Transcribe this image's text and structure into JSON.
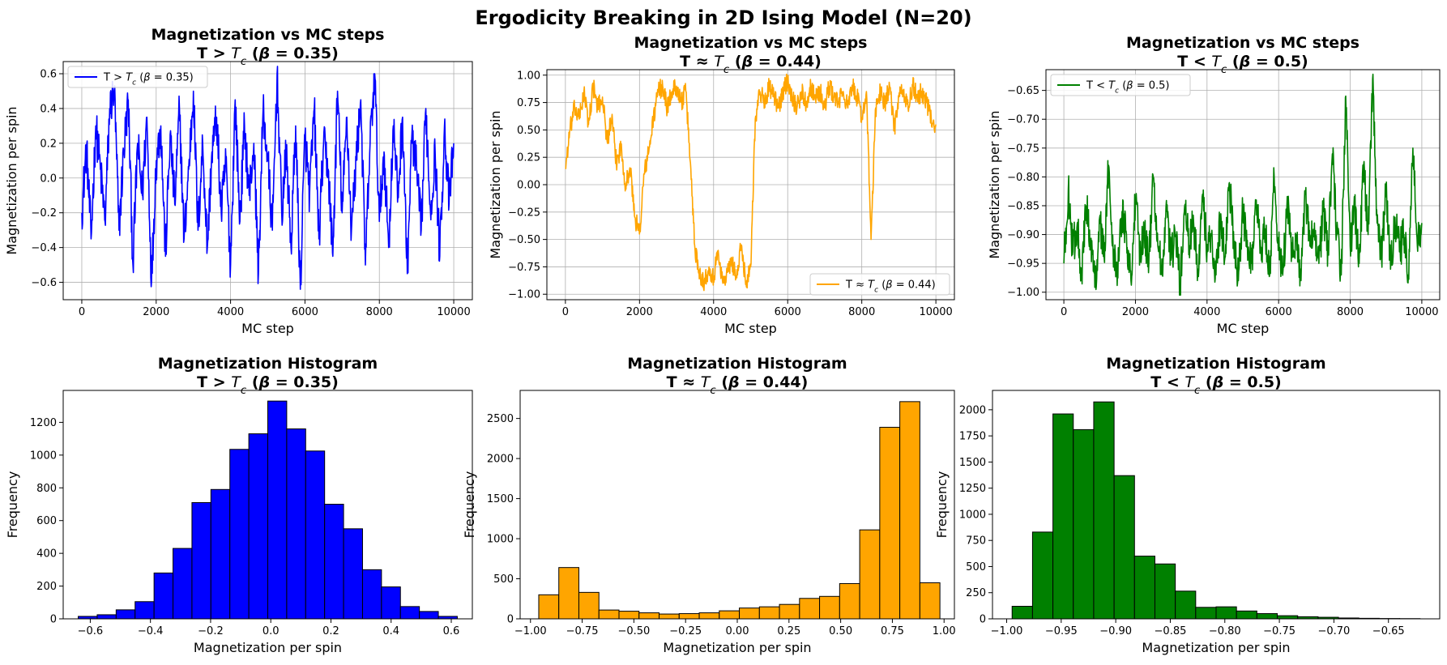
{
  "figure": {
    "title": "Ergodicity Breaking in 2D Ising Model (N=20)"
  },
  "chart_data": [
    {
      "id": "ts-high",
      "type": "line",
      "title_line1": "Magnetization vs MC steps",
      "title_line2": "T > T_c (β = 0.35)",
      "xlabel": "MC step",
      "ylabel": "Magnetization per spin",
      "xlim": [
        -500,
        10500
      ],
      "ylim": [
        -0.7,
        0.67
      ],
      "xticks": [
        0,
        2000,
        4000,
        6000,
        8000,
        10000
      ],
      "yticks": [
        -0.6,
        -0.4,
        -0.2,
        0.0,
        0.2,
        0.4,
        0.6
      ],
      "grid": true,
      "legend": "top-left",
      "series": [
        {
          "name": "T > T_c (β = 0.35)",
          "color": "#0000ff",
          "x_range": [
            0,
            10000
          ],
          "y_points": [
            -0.2,
            0.18,
            -0.35,
            0.3,
            0.05,
            -0.25,
            0.4,
            0.5,
            -0.3,
            0.15,
            0.45,
            -0.5,
            0.2,
            -0.1,
            0.35,
            -0.6,
            0.1,
            0.3,
            -0.45,
            0.25,
            -0.15,
            0.4,
            -0.35,
            0.05,
            0.5,
            -0.3,
            0.2,
            -0.4,
            0.15,
            0.35,
            -0.2,
            0.1,
            -0.5,
            0.45,
            -0.25,
            0.3,
            -0.1,
            0.2,
            -0.55,
            0.4,
            0.1,
            -0.3,
            0.6,
            -0.2,
            0.15,
            -0.4,
            0.3,
            -0.64,
            0.25,
            -0.1,
            0.4,
            -0.35,
            0.2,
            0.05,
            -0.45,
            0.5,
            -0.2,
            0.35,
            -0.3,
            0.1,
            0.45,
            -0.5,
            0.2,
            0.6,
            -0.25,
            0.15,
            -0.4,
            0.3,
            -0.1,
            0.35,
            -0.55,
            0.25,
            0.05,
            -0.3,
            0.4,
            -0.2,
            0.15,
            -0.45,
            0.3,
            -0.15,
            0.2
          ]
        }
      ]
    },
    {
      "id": "ts-crit",
      "type": "line",
      "title_line1": "Magnetization vs MC steps",
      "title_line2": "T ≈ T_c (β = 0.44)",
      "xlabel": "MC step",
      "ylabel": "Magnetization per spin",
      "xlim": [
        -500,
        10500
      ],
      "ylim": [
        -1.05,
        1.05
      ],
      "xticks": [
        0,
        2000,
        4000,
        6000,
        8000,
        10000
      ],
      "yticks": [
        -1.0,
        -0.75,
        -0.5,
        -0.25,
        0.0,
        0.25,
        0.5,
        0.75,
        1.0
      ],
      "grid": true,
      "legend": "bottom-right",
      "series": [
        {
          "name": "T ≈ T_c (β = 0.44)",
          "color": "#ffa500",
          "x_range": [
            0,
            10000
          ],
          "y_points": [
            0.15,
            0.5,
            0.7,
            0.6,
            0.85,
            0.55,
            0.9,
            0.7,
            0.8,
            0.4,
            0.6,
            0.2,
            0.35,
            0.0,
            0.15,
            -0.3,
            -0.45,
            0.1,
            0.3,
            0.6,
            0.85,
            0.9,
            0.7,
            0.85,
            0.9,
            0.75,
            0.85,
            0.2,
            -0.6,
            -0.8,
            -0.9,
            -0.75,
            -0.85,
            -0.6,
            -0.9,
            -0.8,
            -0.7,
            -0.85,
            -0.55,
            -0.9,
            -0.75,
            0.6,
            0.85,
            0.75,
            0.9,
            0.8,
            0.7,
            0.85,
            0.95,
            0.8,
            0.7,
            0.85,
            0.75,
            0.9,
            0.8,
            0.85,
            0.7,
            0.9,
            0.8,
            0.75,
            0.85,
            0.7,
            0.9,
            0.8,
            0.6,
            0.85,
            -0.5,
            0.7,
            0.85,
            0.75,
            0.9,
            0.5,
            0.8,
            0.85,
            0.7,
            0.9,
            0.8,
            0.85,
            0.75,
            0.6,
            0.55
          ]
        }
      ]
    },
    {
      "id": "ts-low",
      "type": "line",
      "title_line1": "Magnetization vs MC steps",
      "title_line2": "T < T_c (β = 0.5)",
      "xlabel": "MC step",
      "ylabel": "Magnetization per spin",
      "xlim": [
        -500,
        10500
      ],
      "ylim": [
        -1.013,
        -0.614
      ],
      "xticks": [
        0,
        2000,
        4000,
        6000,
        8000,
        10000
      ],
      "yticks": [
        -1.0,
        -0.95,
        -0.9,
        -0.85,
        -0.8,
        -0.75,
        -0.7,
        -0.65
      ],
      "grid": true,
      "legend": "top-left",
      "series": [
        {
          "name": "T < T_c (β = 0.5)",
          "color": "#008000",
          "x_range": [
            0,
            10000
          ],
          "y_points": [
            -0.95,
            -0.82,
            -0.93,
            -0.88,
            -0.97,
            -0.85,
            -0.91,
            -0.99,
            -0.87,
            -0.94,
            -0.78,
            -0.92,
            -0.96,
            -0.86,
            -0.9,
            -0.98,
            -0.84,
            -0.93,
            -0.89,
            -0.95,
            -0.8,
            -0.92,
            -0.97,
            -0.86,
            -0.94,
            -0.9,
            -0.99,
            -0.85,
            -0.92,
            -0.88,
            -0.96,
            -0.83,
            -0.93,
            -0.9,
            -0.97,
            -0.87,
            -0.94,
            -0.81,
            -0.92,
            -0.98,
            -0.86,
            -0.91,
            -0.95,
            -0.84,
            -0.93,
            -0.89,
            -0.97,
            -0.8,
            -0.92,
            -0.96,
            -0.85,
            -0.94,
            -0.9,
            -0.98,
            -0.83,
            -0.92,
            -0.88,
            -0.95,
            -0.86,
            -0.93,
            -0.76,
            -0.9,
            -0.97,
            -0.66,
            -0.92,
            -0.85,
            -0.95,
            -0.78,
            -0.9,
            -0.63,
            -0.88,
            -0.94,
            -0.82,
            -0.96,
            -0.87,
            -0.93,
            -0.9,
            -0.97,
            -0.75,
            -0.92,
            -0.88
          ]
        }
      ]
    },
    {
      "id": "hist-high",
      "type": "bar",
      "title_line1": "Magnetization Histogram",
      "title_line2": "T > T_c (β = 0.35)",
      "xlabel": "Magnetization per spin",
      "ylabel": "Frequency",
      "xlim": [
        -0.69,
        0.67
      ],
      "ylim": [
        0,
        1395
      ],
      "xticks": [
        -0.6,
        -0.4,
        -0.2,
        0.0,
        0.2,
        0.4,
        0.6
      ],
      "yticks": [
        0,
        200,
        400,
        600,
        800,
        1000,
        1200
      ],
      "grid": false,
      "color": "#0000ff",
      "bin_range": [
        -0.64,
        0.62
      ],
      "values": [
        15,
        25,
        55,
        105,
        280,
        430,
        710,
        790,
        1035,
        1130,
        1330,
        1160,
        1025,
        700,
        550,
        300,
        195,
        75,
        45,
        15
      ]
    },
    {
      "id": "hist-crit",
      "type": "bar",
      "title_line1": "Magnetization Histogram",
      "title_line2": "T ≈ T_c (β = 0.44)",
      "xlabel": "Magnetization per spin",
      "ylabel": "Frequency",
      "xlim": [
        -1.05,
        1.05
      ],
      "ylim": [
        0,
        2850
      ],
      "xticks": [
        -1.0,
        -0.75,
        -0.5,
        -0.25,
        0.0,
        0.25,
        0.5,
        0.75,
        1.0
      ],
      "yticks": [
        0,
        500,
        1000,
        1500,
        2000,
        2500
      ],
      "grid": false,
      "color": "#ffa500",
      "bin_range": [
        -0.96,
        0.98
      ],
      "values": [
        300,
        640,
        330,
        110,
        95,
        75,
        60,
        65,
        75,
        100,
        135,
        150,
        180,
        255,
        280,
        440,
        1110,
        2390,
        2710,
        450
      ]
    },
    {
      "id": "hist-low",
      "type": "bar",
      "title_line1": "Magnetization Histogram",
      "title_line2": "T < T_c (β = 0.5)",
      "xlabel": "Magnetization per spin",
      "ylabel": "Frequency",
      "xlim": [
        -1.013,
        -0.603
      ],
      "ylim": [
        0,
        2185
      ],
      "xticks": [
        -1.0,
        -0.95,
        -0.9,
        -0.85,
        -0.8,
        -0.75,
        -0.7,
        -0.65
      ],
      "yticks": [
        0,
        250,
        500,
        750,
        1000,
        1250,
        1500,
        1750,
        2000,
        2250
      ],
      "grid": false,
      "color": "#008000",
      "bin_range": [
        -0.995,
        -0.621
      ],
      "values": [
        120,
        830,
        1960,
        1810,
        2075,
        1370,
        600,
        525,
        265,
        110,
        115,
        75,
        50,
        30,
        20,
        15,
        8,
        5,
        3,
        2
      ]
    }
  ]
}
